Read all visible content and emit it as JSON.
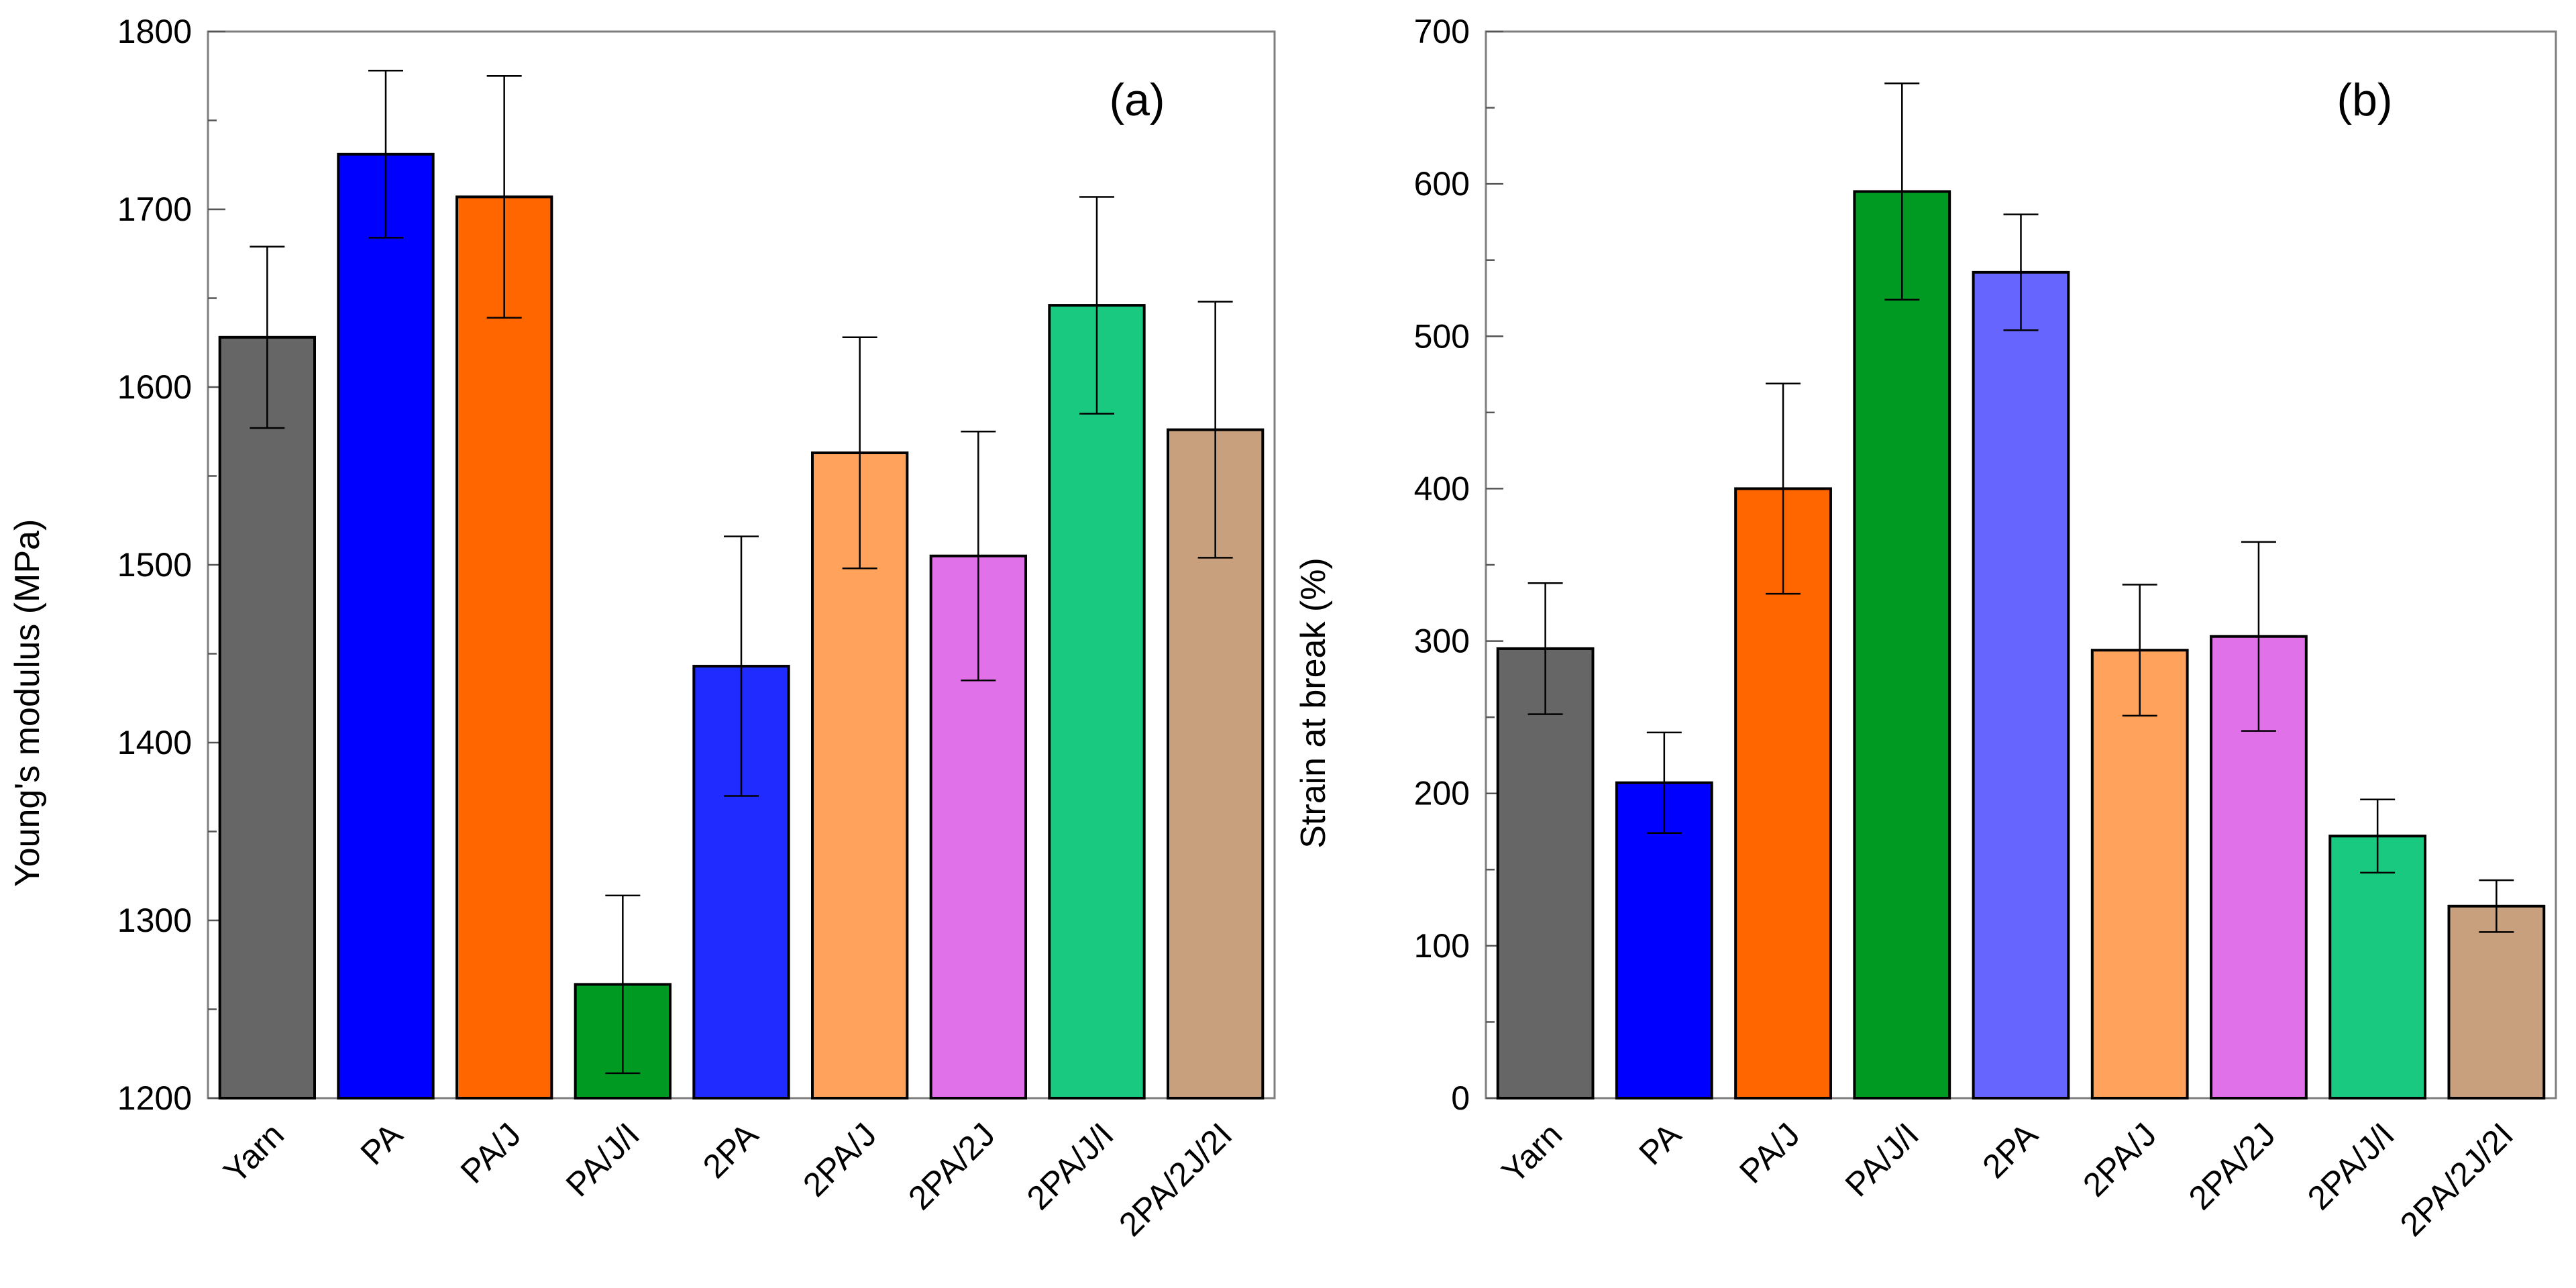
{
  "chart_data": [
    {
      "type": "bar",
      "panel_label": "(a)",
      "ylabel": "Young's modulus (MPa)",
      "xlabel": "",
      "ylim": [
        1200,
        1800
      ],
      "yticks": [
        1200,
        1300,
        1400,
        1500,
        1600,
        1700,
        1800
      ],
      "y_minor_step": 50,
      "categories": [
        "Yarn",
        "PA",
        "PA/J",
        "PA/J/I",
        "2PA",
        "2PA/J",
        "2PA/2J",
        "2PA/J/I",
        "2PA/2J/2I"
      ],
      "values": [
        1628,
        1731,
        1707,
        1264,
        1443,
        1563,
        1505,
        1646,
        1576
      ],
      "errors": [
        51,
        47,
        68,
        50,
        73,
        65,
        70,
        61,
        72
      ],
      "colors": [
        "#666666",
        "#0000ff",
        "#ff6600",
        "#009922",
        "#1f2bff",
        "#ffa35c",
        "#e071e8",
        "#19c97f",
        "#c9a07e"
      ],
      "grid": false
    },
    {
      "type": "bar",
      "panel_label": "(b)",
      "ylabel": "Strain at break (%)",
      "xlabel": "",
      "ylim": [
        0,
        700
      ],
      "yticks": [
        0,
        100,
        200,
        300,
        400,
        500,
        600,
        700
      ],
      "y_minor_step": 50,
      "categories": [
        "Yarn",
        "PA",
        "PA/J",
        "PA/J/I",
        "2PA",
        "2PA/J",
        "2PA/2J",
        "2PA/J/I",
        "2PA/2J/2I"
      ],
      "values": [
        295,
        207,
        400,
        595,
        542,
        294,
        303,
        172,
        126
      ],
      "errors": [
        43,
        33,
        69,
        71,
        38,
        43,
        62,
        24,
        17
      ],
      "colors": [
        "#666666",
        "#0000ff",
        "#ff6600",
        "#009922",
        "#6666ff",
        "#ffa35c",
        "#e071e8",
        "#19c97f",
        "#c9a07e"
      ],
      "grid": false
    }
  ]
}
